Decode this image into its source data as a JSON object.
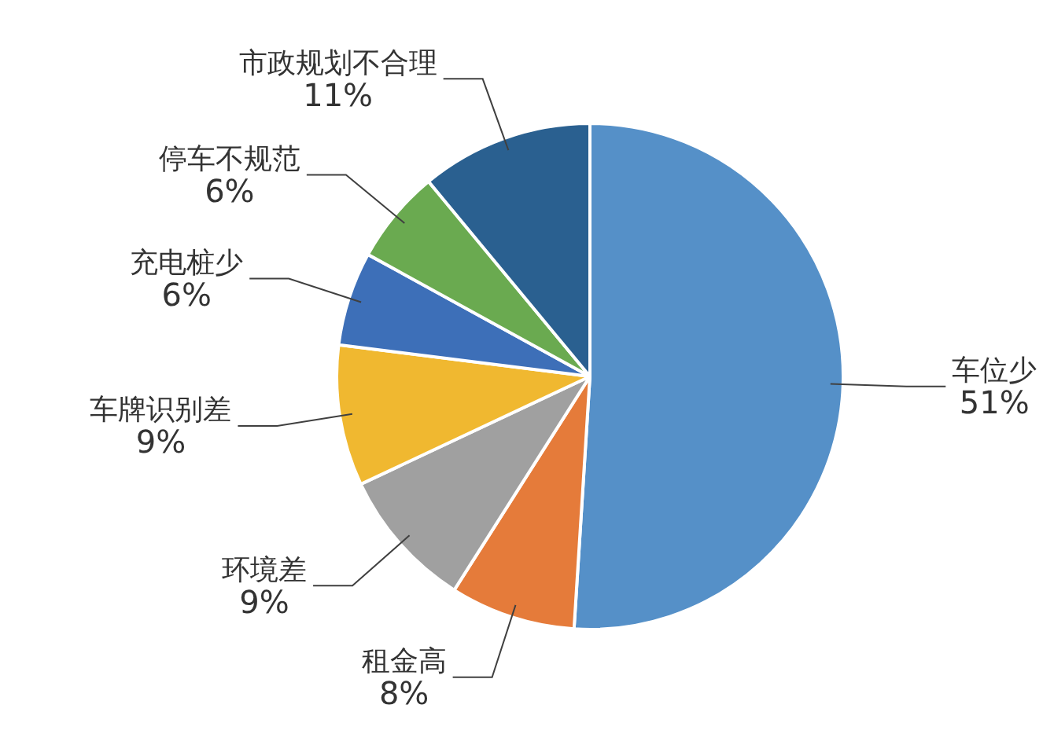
{
  "chart_data": {
    "type": "pie",
    "categories": [
      "车位少",
      "租金高",
      "环境差",
      "车牌识别差",
      "充电桩少",
      "停车不规范",
      "市政规划不合理"
    ],
    "values": [
      51,
      8,
      9,
      9,
      6,
      6,
      11
    ],
    "colors": [
      "#5590c8",
      "#e57b3a",
      "#a0a0a0",
      "#f0b830",
      "#3d6fb8",
      "#6aaa50",
      "#2a6090"
    ],
    "value_labels": [
      "51%",
      "8%",
      "9%",
      "9%",
      "6%",
      "6%",
      "11%"
    ],
    "legend": false
  }
}
